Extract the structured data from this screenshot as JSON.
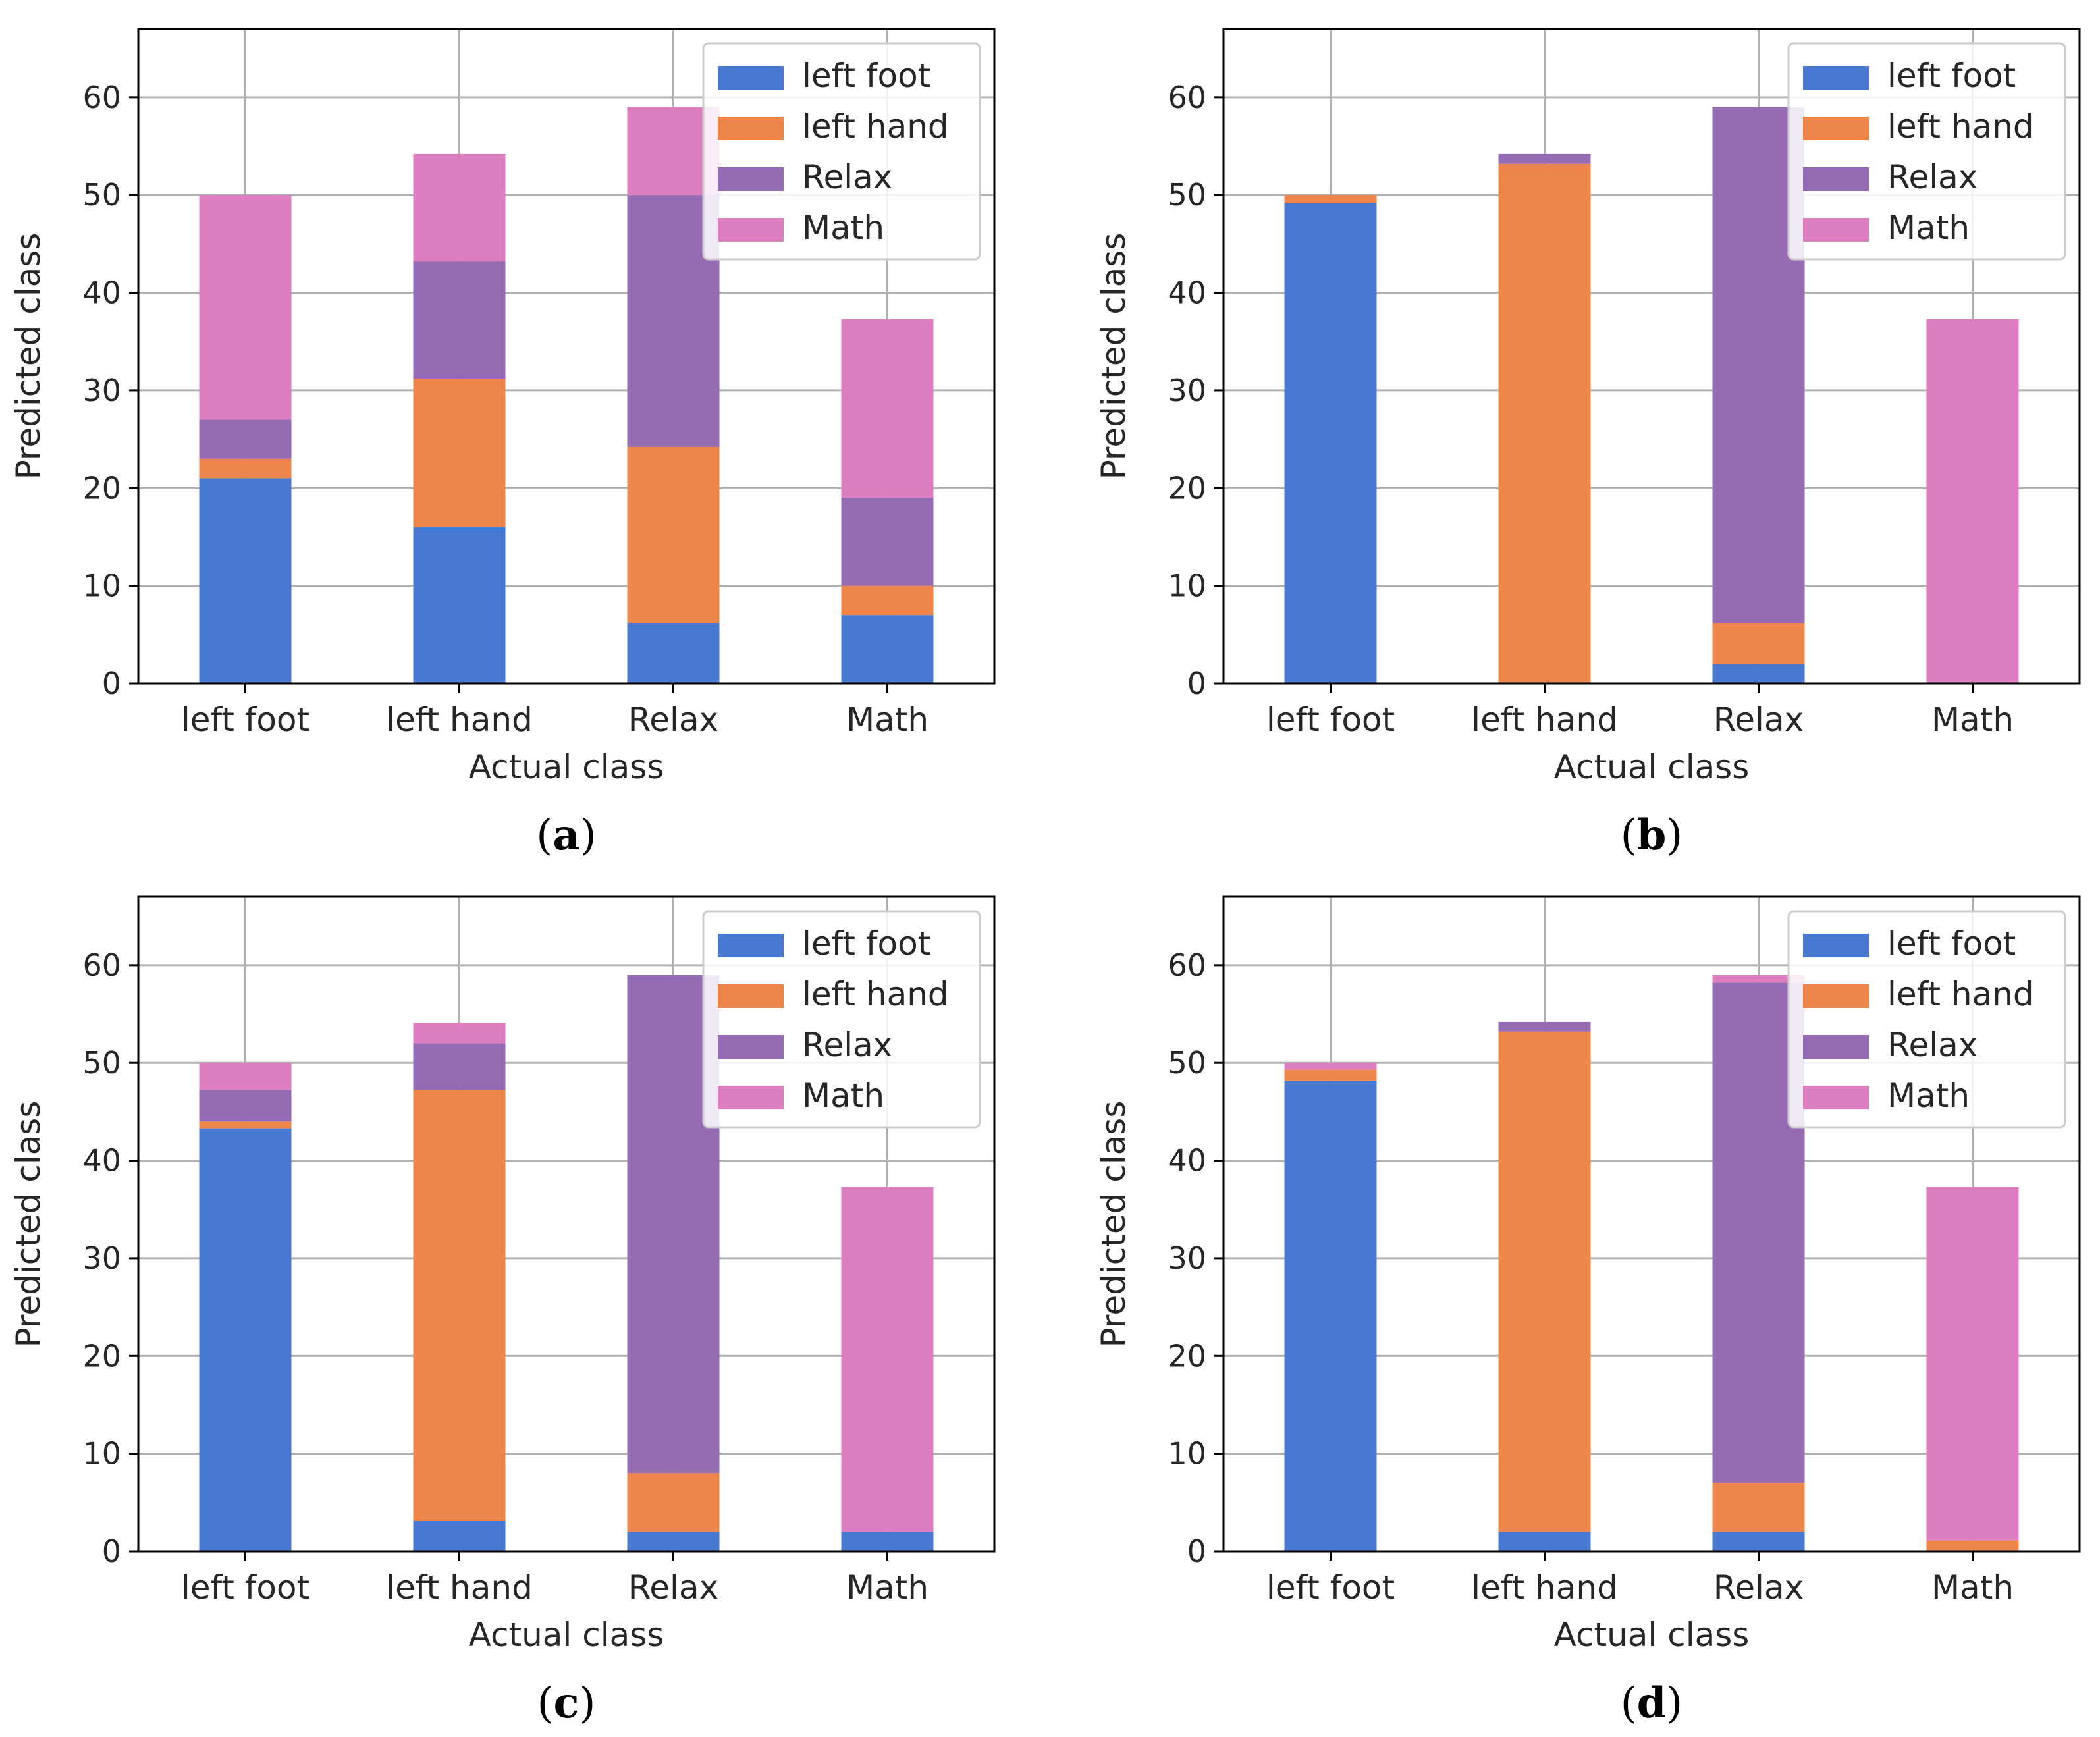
{
  "colors": {
    "left foot": "#4878d0",
    "left hand": "#ee854a",
    "Relax": "#956cb4",
    "Math": "#dc7ec0",
    "grid": "#b0b0b0",
    "axis": "#000000"
  },
  "chart_data": [
    {
      "type": "bar",
      "stacked": true,
      "caption": "(a)",
      "caption_letter": "a",
      "categories": [
        "left foot",
        "left hand",
        "Relax",
        "Math"
      ],
      "series": [
        {
          "name": "left foot",
          "values": [
            21,
            16,
            6.2,
            7
          ]
        },
        {
          "name": "left hand",
          "values": [
            2,
            15.2,
            18,
            3
          ]
        },
        {
          "name": "Relax",
          "values": [
            4,
            12,
            25.8,
            9
          ]
        },
        {
          "name": "Math",
          "values": [
            23,
            11,
            9,
            18.3
          ]
        }
      ],
      "title": "",
      "xlabel": "Actual class",
      "ylabel": "Predicted class",
      "ylim": [
        0,
        67
      ],
      "yticks": [
        "0",
        "10",
        "20",
        "30",
        "40",
        "50",
        "60"
      ],
      "grid": true,
      "legend": "top-right"
    },
    {
      "type": "bar",
      "stacked": true,
      "caption": "(b)",
      "caption_letter": "b",
      "categories": [
        "left foot",
        "left hand",
        "Relax",
        "Math"
      ],
      "series": [
        {
          "name": "left foot",
          "values": [
            49.2,
            0,
            2,
            0
          ]
        },
        {
          "name": "left hand",
          "values": [
            0.8,
            53.2,
            4.2,
            0
          ]
        },
        {
          "name": "Relax",
          "values": [
            0,
            1,
            52.8,
            0
          ]
        },
        {
          "name": "Math",
          "values": [
            0,
            0,
            0,
            37.3
          ]
        }
      ],
      "title": "",
      "xlabel": "Actual class",
      "ylabel": "Predicted class",
      "ylim": [
        0,
        67
      ],
      "yticks": [
        "0",
        "10",
        "20",
        "30",
        "40",
        "50",
        "60"
      ],
      "grid": true,
      "legend": "top-right"
    },
    {
      "type": "bar",
      "stacked": true,
      "caption": "(c)",
      "caption_letter": "c",
      "categories": [
        "left foot",
        "left hand",
        "Relax",
        "Math"
      ],
      "series": [
        {
          "name": "left foot",
          "values": [
            43.3,
            3.1,
            2,
            2
          ]
        },
        {
          "name": "left hand",
          "values": [
            0.7,
            44.1,
            6,
            0
          ]
        },
        {
          "name": "Relax",
          "values": [
            3.2,
            4.8,
            51,
            0
          ]
        },
        {
          "name": "Math",
          "values": [
            2.8,
            2.1,
            0,
            35.3
          ]
        }
      ],
      "title": "",
      "xlabel": "Actual class",
      "ylabel": "Predicted class",
      "ylim": [
        0,
        67
      ],
      "yticks": [
        "0",
        "10",
        "20",
        "30",
        "40",
        "50",
        "60"
      ],
      "grid": true,
      "legend": "top-right"
    },
    {
      "type": "bar",
      "stacked": true,
      "caption": "(d)",
      "caption_letter": "d",
      "categories": [
        "left foot",
        "left hand",
        "Relax",
        "Math"
      ],
      "series": [
        {
          "name": "left foot",
          "values": [
            48.2,
            2,
            2,
            0
          ]
        },
        {
          "name": "left hand",
          "values": [
            1.1,
            51.2,
            5,
            1.1
          ]
        },
        {
          "name": "Relax",
          "values": [
            0,
            1,
            51.2,
            0
          ]
        },
        {
          "name": "Math",
          "values": [
            0.7,
            0,
            0.8,
            36.2
          ]
        }
      ],
      "title": "",
      "xlabel": "Actual class",
      "ylabel": "Predicted class",
      "ylim": [
        0,
        67
      ],
      "yticks": [
        "0",
        "10",
        "20",
        "30",
        "40",
        "50",
        "60"
      ],
      "grid": true,
      "legend": "top-right"
    }
  ]
}
